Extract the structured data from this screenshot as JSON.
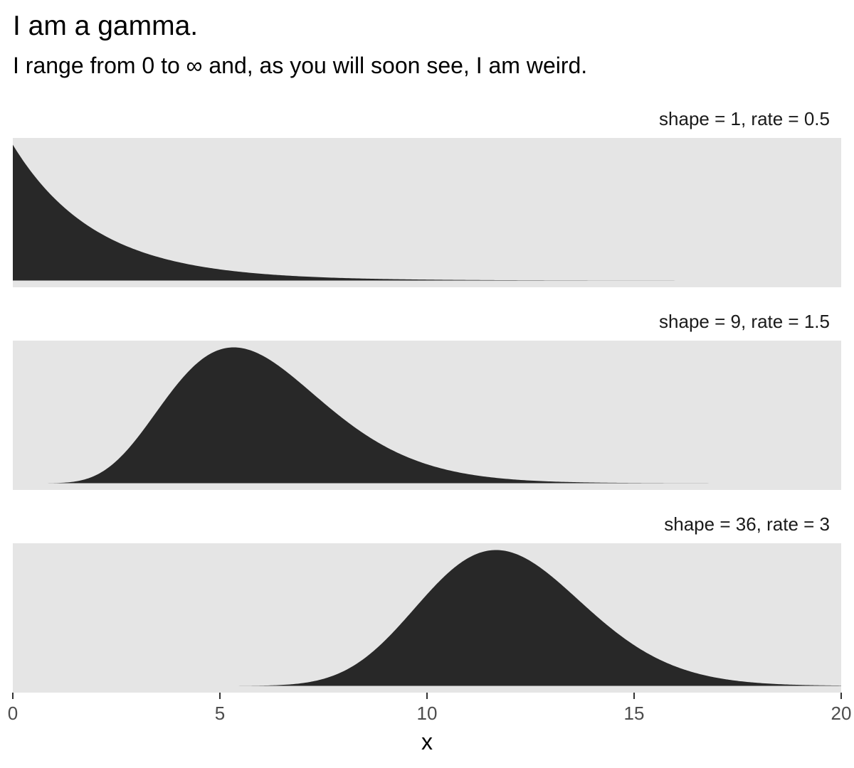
{
  "title": "I am a gamma.",
  "subtitle": "I range from 0 to ∞ and, as you will soon see, I am weird.",
  "chart_data": {
    "type": "area",
    "title": "I am a gamma.",
    "subtitle": "I range from 0 to ∞ and, as you will soon see, I am weird.",
    "xlabel": "x",
    "ylabel": "",
    "xlim": [
      0,
      20
    ],
    "x_ticks": [
      0,
      5,
      10,
      15,
      20
    ],
    "x_tick_labels": [
      "0",
      "5",
      "10",
      "15",
      "20"
    ],
    "facets_scale_y": "free",
    "panel_background": "#e5e5e5",
    "fill_color": "#282828",
    "series": [
      {
        "name": "shape = 1, rate = 0.5",
        "shape": 1,
        "rate": 0.5,
        "x_range": [
          0,
          20
        ],
        "x": [
          0,
          1,
          2,
          3,
          4,
          5,
          6,
          8,
          10,
          12,
          15,
          20
        ],
        "y": [
          0.5,
          0.303,
          0.184,
          0.112,
          0.068,
          0.041,
          0.025,
          0.009,
          0.003,
          0.001,
          0.0003,
          2e-05
        ]
      },
      {
        "name": "shape = 9, rate = 1.5",
        "shape": 9,
        "rate": 1.5,
        "x_range": [
          0.7,
          18.7
        ],
        "x": [
          1,
          2,
          3,
          4,
          5,
          5.33,
          6,
          7,
          8,
          10,
          12,
          15,
          18.7
        ],
        "y": [
          0.0002,
          0.009,
          0.051,
          0.116,
          0.159,
          0.161,
          0.153,
          0.119,
          0.08,
          0.027,
          0.007,
          0.0006,
          2e-05
        ]
      },
      {
        "name": "shape = 36, rate = 3",
        "shape": 36,
        "rate": 3,
        "x_range": [
          5,
          20
        ],
        "x": [
          5,
          7,
          8,
          9,
          10,
          11,
          11.67,
          12,
          13,
          14,
          15,
          17,
          20
        ],
        "y": [
          3e-05,
          0.013,
          0.048,
          0.116,
          0.197,
          0.246,
          0.255,
          0.25,
          0.204,
          0.137,
          0.078,
          0.016,
          0.0006
        ]
      }
    ]
  }
}
